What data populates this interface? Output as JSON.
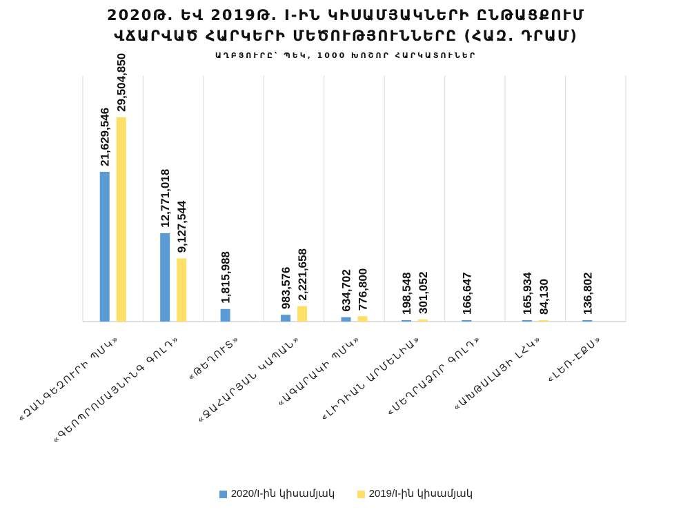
{
  "title_line1": "2020Թ. ԵՎ 2019Թ. I-ԻՆ ԿԻՍԱՄՅԱԿՆԵՐԻ ԸՆԹԱՑՔՈՒՄ",
  "title_line2": "ՎՃԱՐՎԱԾ ՀԱՐԿԵՐԻ ՄԵԾՈՒԹՅՈՒՆՆԵՐԸ (ՀԱԶ. ԴՐԱՄ)",
  "subtitle": "ԱՂԲՅՈՒՐԸ՝ ՊԵԿ, 1000 ԽՈՇՈՐ ՀԱՐԿԱՏՈՒՆԵՐ",
  "colors": {
    "series2020": "#5b9bd5",
    "series2019": "#ffe066",
    "grid": "#d9d9d9",
    "axis": "#bfbfbf"
  },
  "chart_data": {
    "type": "bar",
    "categories": [
      "«ԶԱՆԳԵԶՈՒՐԻ ՊՄԿ»",
      "«ԳԵՈՊՐՈՄԱՅՆԻՆԳ ԳՈԼԴ»",
      "«ԹԵՂՈՒՏ»",
      "«ՋԱՀԱՐՅԱՆ ԿԱՊԱՆ»",
      "«ԱԳԱՐԱԿԻ ՊՄԿ»",
      "«ԼԻԴԻԱՆ ԱՐՄԵՆԻԱ»",
      "«ՄԵՂՐԱՁՈՐ ԳՈԼԴ»",
      "«ԱԽԹԱԼԱՅԻ ԼՀԿ»",
      "«ԼԵՌ-ԷՔՍ»"
    ],
    "series": [
      {
        "name": "2020/I-ին կիսամյակ",
        "values": [
          21629546,
          12771018,
          1815988,
          983576,
          634702,
          198548,
          166647,
          165934,
          136802
        ],
        "labels": [
          "21,629,546",
          "12,771,018",
          "1,815,988",
          "983,576",
          "634,702",
          "198,548",
          "166,647",
          "165,934",
          "136,802"
        ]
      },
      {
        "name": "2019/I-ին կիսամյակ",
        "values": [
          29504850,
          9127544,
          null,
          2221658,
          776800,
          301052,
          null,
          84130,
          null
        ],
        "labels": [
          "29,504,850",
          "9,127,544",
          "",
          "2,221,658",
          "776,800",
          "301,052",
          "",
          "84,130",
          ""
        ]
      }
    ],
    "ylim": [
      0,
      30000000
    ],
    "grid": "vertical",
    "legend": "bottom"
  }
}
